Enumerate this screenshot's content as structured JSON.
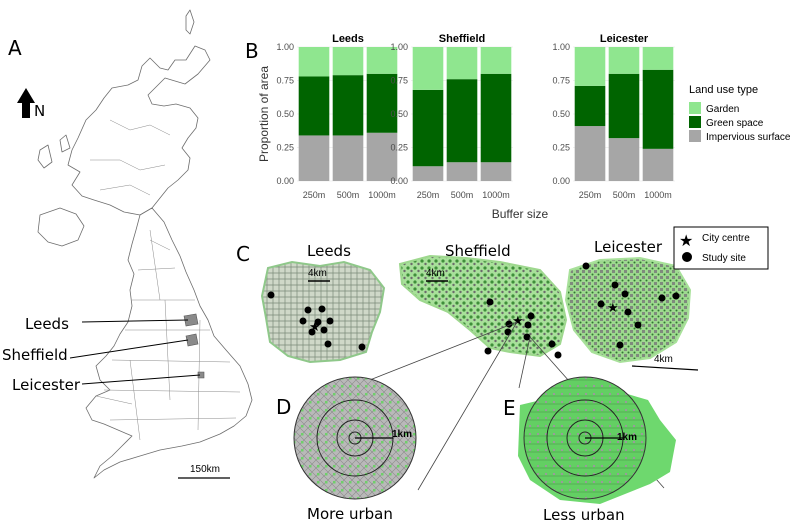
{
  "panels": {
    "a": "A",
    "b": "B",
    "c": "C",
    "d": "D",
    "e": "E"
  },
  "uk_map": {
    "north_label": "N",
    "cities": [
      "Leeds",
      "Sheffield",
      "Leicester"
    ],
    "scale_label": "150km"
  },
  "city_maps": {
    "titles": [
      "Leeds",
      "Sheffield",
      "Leicester"
    ],
    "scale_labels": [
      "4km",
      "4km",
      "4km"
    ],
    "legend": {
      "city_centre": "City centre",
      "study_site": "Study site"
    }
  },
  "zoom_maps": {
    "d_label": "More urban",
    "e_label": "Less urban",
    "d_scale": "1km",
    "e_scale": "1km"
  },
  "colors": {
    "garden": "#8fe68f",
    "green_space": "#006400",
    "impervious": "#a6a6a6"
  },
  "chart_data": {
    "type": "bar",
    "stacked": true,
    "facets": [
      "Leeds",
      "Sheffield",
      "Leicester"
    ],
    "categories": [
      "250m",
      "500m",
      "1000m"
    ],
    "xlabel": "Buffer size",
    "ylabel": "Proportion of area",
    "ylim": [
      0,
      1
    ],
    "yticks": [
      "0.00",
      "0.25",
      "0.50",
      "0.75",
      "1.00"
    ],
    "legend_title": "Land use type",
    "legend_position": "right",
    "series": [
      {
        "name": "Garden",
        "values": {
          "Leeds": [
            0.22,
            0.21,
            0.2
          ],
          "Sheffield": [
            0.32,
            0.24,
            0.2
          ],
          "Leicester": [
            0.29,
            0.2,
            0.17
          ]
        }
      },
      {
        "name": "Green space",
        "values": {
          "Leeds": [
            0.44,
            0.45,
            0.44
          ],
          "Sheffield": [
            0.57,
            0.62,
            0.66
          ],
          "Leicester": [
            0.3,
            0.48,
            0.59
          ]
        }
      },
      {
        "name": "Impervious surface",
        "values": {
          "Leeds": [
            0.34,
            0.34,
            0.36
          ],
          "Sheffield": [
            0.11,
            0.14,
            0.14
          ],
          "Leicester": [
            0.41,
            0.32,
            0.24
          ]
        }
      }
    ]
  }
}
